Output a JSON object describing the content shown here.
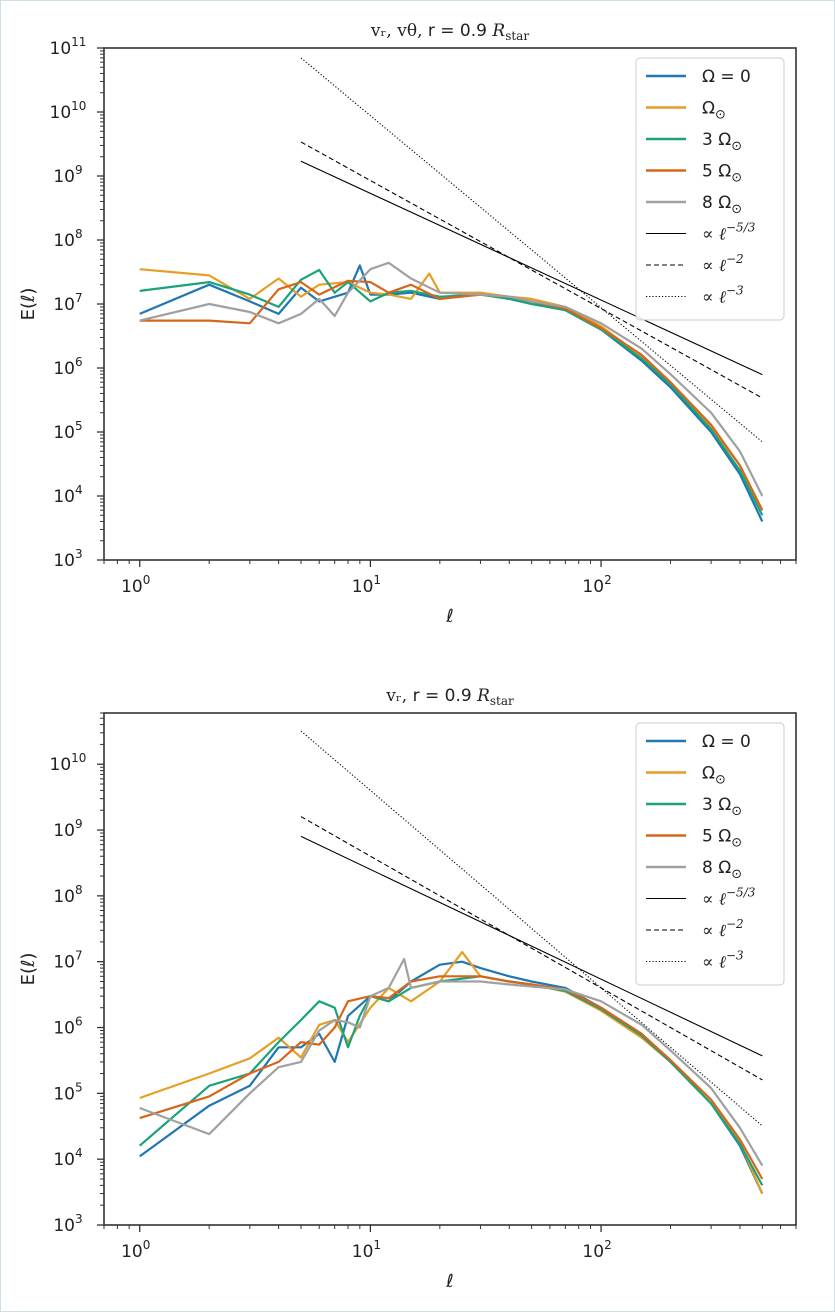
{
  "chart_data": [
    {
      "type": "line",
      "title": "v_r, v_θ, r = 0.9 R_star",
      "title_parts": {
        "vars": "vᵣ, vθ,",
        "rest": " r = 0.9 ",
        "unit": "R",
        "unit_sub": "star"
      },
      "xlabel": "ℓ",
      "ylabel": "E(ℓ)",
      "xscale": "log",
      "yscale": "log",
      "xlim": [
        0.7,
        700
      ],
      "ylim": [
        1000,
        100000000000
      ],
      "x_ticks": [
        {
          "base": "10",
          "exp": "0",
          "value": 1
        },
        {
          "base": "10",
          "exp": "1",
          "value": 10
        },
        {
          "base": "10",
          "exp": "2",
          "value": 100
        }
      ],
      "y_ticks": [
        {
          "base": "10",
          "exp": "3",
          "value": 1000
        },
        {
          "base": "10",
          "exp": "4",
          "value": 10000
        },
        {
          "base": "10",
          "exp": "5",
          "value": 100000
        },
        {
          "base": "10",
          "exp": "6",
          "value": 1000000
        },
        {
          "base": "10",
          "exp": "7",
          "value": 10000000
        },
        {
          "base": "10",
          "exp": "8",
          "value": 100000000
        },
        {
          "base": "10",
          "exp": "9",
          "value": 1000000000
        },
        {
          "base": "10",
          "exp": "10",
          "value": 10000000000
        },
        {
          "base": "10",
          "exp": "11",
          "value": 100000000000
        }
      ],
      "series": [
        {
          "name": "Ω = 0",
          "color": "#1f77b4",
          "x": [
            1,
            2,
            3,
            4,
            5,
            6,
            8,
            9,
            10,
            12,
            15,
            20,
            30,
            40,
            50,
            70,
            100,
            150,
            200,
            300,
            400,
            500
          ],
          "y": [
            7000000.0,
            20000000.0,
            11000000.0,
            7000000.0,
            18000000.0,
            11000000.0,
            15000000.0,
            40000000.0,
            14000000.0,
            14000000.0,
            15000000.0,
            12000000.0,
            15000000.0,
            12000000.0,
            11000000.0,
            8000000.0,
            4000000.0,
            1300000.0,
            500000.0,
            100000.0,
            22000.0,
            4000.0
          ]
        },
        {
          "name": "Ω⊙",
          "color": "#e69f24",
          "x": [
            1,
            2,
            3,
            4,
            5,
            6,
            8,
            10,
            12,
            15,
            18,
            20,
            30,
            40,
            50,
            70,
            100,
            150,
            200,
            300,
            400,
            500
          ],
          "y": [
            35000000.0,
            28000000.0,
            12000000.0,
            25000000.0,
            13000000.0,
            20000000.0,
            22000000.0,
            15000000.0,
            14000000.0,
            12000000.0,
            30000000.0,
            15000000.0,
            15000000.0,
            13000000.0,
            12000000.0,
            9000000.0,
            4500000.0,
            1500000.0,
            600000.0,
            120000.0,
            30000.0,
            6000.0
          ]
        },
        {
          "name": "3 Ω⊙",
          "color": "#1aa37a",
          "x": [
            1,
            2,
            3,
            4,
            5,
            6,
            7,
            8,
            10,
            12,
            15,
            20,
            30,
            40,
            50,
            70,
            100,
            150,
            200,
            300,
            400,
            500
          ],
          "y": [
            16000000.0,
            22000000.0,
            14000000.0,
            9000000.0,
            24000000.0,
            34000000.0,
            15000000.0,
            22000000.0,
            11000000.0,
            15000000.0,
            16000000.0,
            13000000.0,
            14000000.0,
            12000000.0,
            10000000.0,
            8000000.0,
            4000000.0,
            1400000.0,
            550000.0,
            110000.0,
            25000.0,
            5000.0
          ]
        },
        {
          "name": "5 Ω⊙",
          "color": "#d7661a",
          "x": [
            1,
            2,
            3,
            4,
            5,
            6,
            8,
            10,
            12,
            15,
            20,
            30,
            40,
            50,
            70,
            100,
            150,
            200,
            300,
            400,
            500
          ],
          "y": [
            5500000.0,
            5500000.0,
            5000000.0,
            17000000.0,
            22000000.0,
            14000000.0,
            23000000.0,
            22000000.0,
            15000000.0,
            20000000.0,
            12000000.0,
            14000000.0,
            13000000.0,
            11000000.0,
            8500000.0,
            4200000.0,
            1600000.0,
            600000.0,
            130000.0,
            30000.0,
            6000.0
          ]
        },
        {
          "name": "8 Ω⊙",
          "color": "#a0a0a0",
          "x": [
            1,
            2,
            3,
            4,
            5,
            6,
            7,
            8,
            10,
            12,
            15,
            20,
            30,
            40,
            50,
            70,
            100,
            150,
            200,
            300,
            400,
            500
          ],
          "y": [
            5500000.0,
            10000000.0,
            7500000.0,
            5000000.0,
            7000000.0,
            12000000.0,
            6500000.0,
            15000000.0,
            35000000.0,
            44000000.0,
            25000000.0,
            15000000.0,
            14000000.0,
            13000000.0,
            11000000.0,
            9000000.0,
            5000000.0,
            2000000.0,
            800000.0,
            200000.0,
            50000.0,
            10000.0
          ]
        },
        {
          "name": "∝ ℓ^-5/3",
          "color": "#000000",
          "dash": "solid",
          "x": [
            5,
            500
          ],
          "y": [
            1700000000.0,
            790000.0
          ]
        },
        {
          "name": "∝ ℓ^-2",
          "color": "#000000",
          "dash": "dashed",
          "x": [
            5,
            500
          ],
          "y": [
            3400000000.0,
            340000.0
          ]
        },
        {
          "name": "∝ ℓ^-3",
          "color": "#000000",
          "dash": "dotted",
          "x": [
            5,
            500
          ],
          "y": [
            70000000000.0,
            70000.0
          ]
        }
      ],
      "legend": {
        "placement": "upper right",
        "entries": [
          {
            "label": "Ω = 0"
          },
          {
            "label": "Ω",
            "sub": "⊙"
          },
          {
            "label": "3 Ω",
            "sub": "⊙"
          },
          {
            "label": "5 Ω",
            "sub": "⊙"
          },
          {
            "label": "8 Ω",
            "sub": "⊙"
          },
          {
            "label": "∝ ℓ",
            "sup": "−5/3"
          },
          {
            "label": "∝ ℓ",
            "sup": "−2"
          },
          {
            "label": "∝ ℓ",
            "sup": "−3"
          }
        ]
      }
    },
    {
      "type": "line",
      "title": "v_r, r = 0.9 R_star",
      "title_parts": {
        "vars": "vᵣ,",
        "rest": " r = 0.9 ",
        "unit": "R",
        "unit_sub": "star"
      },
      "xlabel": "ℓ",
      "ylabel": "E(ℓ)",
      "xscale": "log",
      "yscale": "log",
      "xlim": [
        0.7,
        700
      ],
      "ylim": [
        1000,
        60000000000
      ],
      "x_ticks": [
        {
          "base": "10",
          "exp": "0",
          "value": 1
        },
        {
          "base": "10",
          "exp": "1",
          "value": 10
        },
        {
          "base": "10",
          "exp": "2",
          "value": 100
        }
      ],
      "y_ticks": [
        {
          "base": "10",
          "exp": "3",
          "value": 1000
        },
        {
          "base": "10",
          "exp": "4",
          "value": 10000
        },
        {
          "base": "10",
          "exp": "5",
          "value": 100000
        },
        {
          "base": "10",
          "exp": "6",
          "value": 1000000
        },
        {
          "base": "10",
          "exp": "7",
          "value": 10000000
        },
        {
          "base": "10",
          "exp": "8",
          "value": 100000000
        },
        {
          "base": "10",
          "exp": "9",
          "value": 1000000000
        },
        {
          "base": "10",
          "exp": "10",
          "value": 10000000000
        }
      ],
      "series": [
        {
          "name": "Ω = 0",
          "color": "#1f77b4",
          "x": [
            1,
            2,
            3,
            4,
            5,
            6,
            7,
            8,
            10,
            12,
            15,
            20,
            25,
            30,
            40,
            50,
            70,
            100,
            150,
            200,
            300,
            400,
            500
          ],
          "y": [
            11000.0,
            65000.0,
            130000.0,
            500000.0,
            500000.0,
            800000.0,
            300000.0,
            1500000.0,
            3000000.0,
            2500000.0,
            5000000.0,
            9000000.0,
            10000000.0,
            8000000.0,
            6000000.0,
            5000000.0,
            4000000.0,
            2000000.0,
            800000.0,
            300000.0,
            70000.0,
            16000.0,
            3000.0
          ]
        },
        {
          "name": "Ω⊙",
          "color": "#e69f24",
          "x": [
            1,
            2,
            3,
            4,
            5,
            6,
            7,
            8,
            10,
            12,
            15,
            20,
            25,
            30,
            40,
            50,
            70,
            100,
            150,
            200,
            300,
            400,
            500
          ],
          "y": [
            85000.0,
            200000.0,
            340000.0,
            700000.0,
            350000.0,
            1100000.0,
            1300000.0,
            600000.0,
            2000000.0,
            4000000.0,
            2500000.0,
            5000000.0,
            14000000.0,
            6000000.0,
            5000000.0,
            4500000.0,
            3500000.0,
            1800000.0,
            700000.0,
            300000.0,
            70000.0,
            18000.0,
            3000.0
          ]
        },
        {
          "name": "3 Ω⊙",
          "color": "#1aa37a",
          "x": [
            1,
            2,
            3,
            4,
            5,
            6,
            7,
            8,
            9,
            10,
            12,
            15,
            20,
            30,
            40,
            50,
            70,
            100,
            150,
            200,
            300,
            400,
            500
          ],
          "y": [
            16000.0,
            130000.0,
            200000.0,
            600000.0,
            1300000.0,
            2500000.0,
            2000000.0,
            500000.0,
            1500000.0,
            3000000.0,
            2500000.0,
            4000000.0,
            5000000.0,
            6000000.0,
            5000000.0,
            4500000.0,
            3600000.0,
            1900000.0,
            750000.0,
            300000.0,
            70000.0,
            17000.0,
            4000.0
          ]
        },
        {
          "name": "5 Ω⊙",
          "color": "#d7661a",
          "x": [
            1,
            2,
            3,
            4,
            5,
            6,
            7,
            8,
            10,
            12,
            15,
            20,
            30,
            40,
            50,
            70,
            100,
            150,
            200,
            300,
            400,
            500
          ],
          "y": [
            42000.0,
            90000.0,
            200000.0,
            300000.0,
            600000.0,
            550000.0,
            1000000.0,
            2500000.0,
            3000000.0,
            2800000.0,
            5000000.0,
            6000000.0,
            6000000.0,
            5000000.0,
            4500000.0,
            3800000.0,
            2000000.0,
            800000.0,
            320000.0,
            80000.0,
            20000.0,
            5000.0
          ]
        },
        {
          "name": "8 Ω⊙",
          "color": "#a0a0a0",
          "x": [
            1,
            2,
            3,
            4,
            5,
            6,
            7,
            8,
            9,
            10,
            12,
            14,
            15,
            20,
            30,
            40,
            50,
            70,
            100,
            150,
            200,
            300,
            400,
            500
          ],
          "y": [
            60000.0,
            24000.0,
            100000.0,
            250000.0,
            300000.0,
            900000.0,
            1300000.0,
            1200000.0,
            1000000.0,
            3000000.0,
            4000000.0,
            11000000.0,
            4000000.0,
            5000000.0,
            5000000.0,
            4500000.0,
            4200000.0,
            3800000.0,
            2500000.0,
            1100000.0,
            450000.0,
            120000.0,
            30000.0,
            8000.0
          ]
        },
        {
          "name": "∝ ℓ^-5/3",
          "color": "#000000",
          "dash": "solid",
          "x": [
            5,
            500
          ],
          "y": [
            800000000.0,
            370000.0
          ]
        },
        {
          "name": "∝ ℓ^-2",
          "color": "#000000",
          "dash": "dashed",
          "x": [
            5,
            500
          ],
          "y": [
            1600000000.0,
            160000.0
          ]
        },
        {
          "name": "∝ ℓ^-3",
          "color": "#000000",
          "dash": "dotted",
          "x": [
            5,
            500
          ],
          "y": [
            32000000000.0,
            32000.0
          ]
        }
      ],
      "legend": {
        "placement": "upper right",
        "entries": [
          {
            "label": "Ω = 0"
          },
          {
            "label": "Ω",
            "sub": "⊙"
          },
          {
            "label": "3 Ω",
            "sub": "⊙"
          },
          {
            "label": "5 Ω",
            "sub": "⊙"
          },
          {
            "label": "8 Ω",
            "sub": "⊙"
          },
          {
            "label": "∝ ℓ",
            "sup": "−5/3"
          },
          {
            "label": "∝ ℓ",
            "sup": "−2"
          },
          {
            "label": "∝ ℓ",
            "sup": "−3"
          }
        ]
      }
    }
  ]
}
